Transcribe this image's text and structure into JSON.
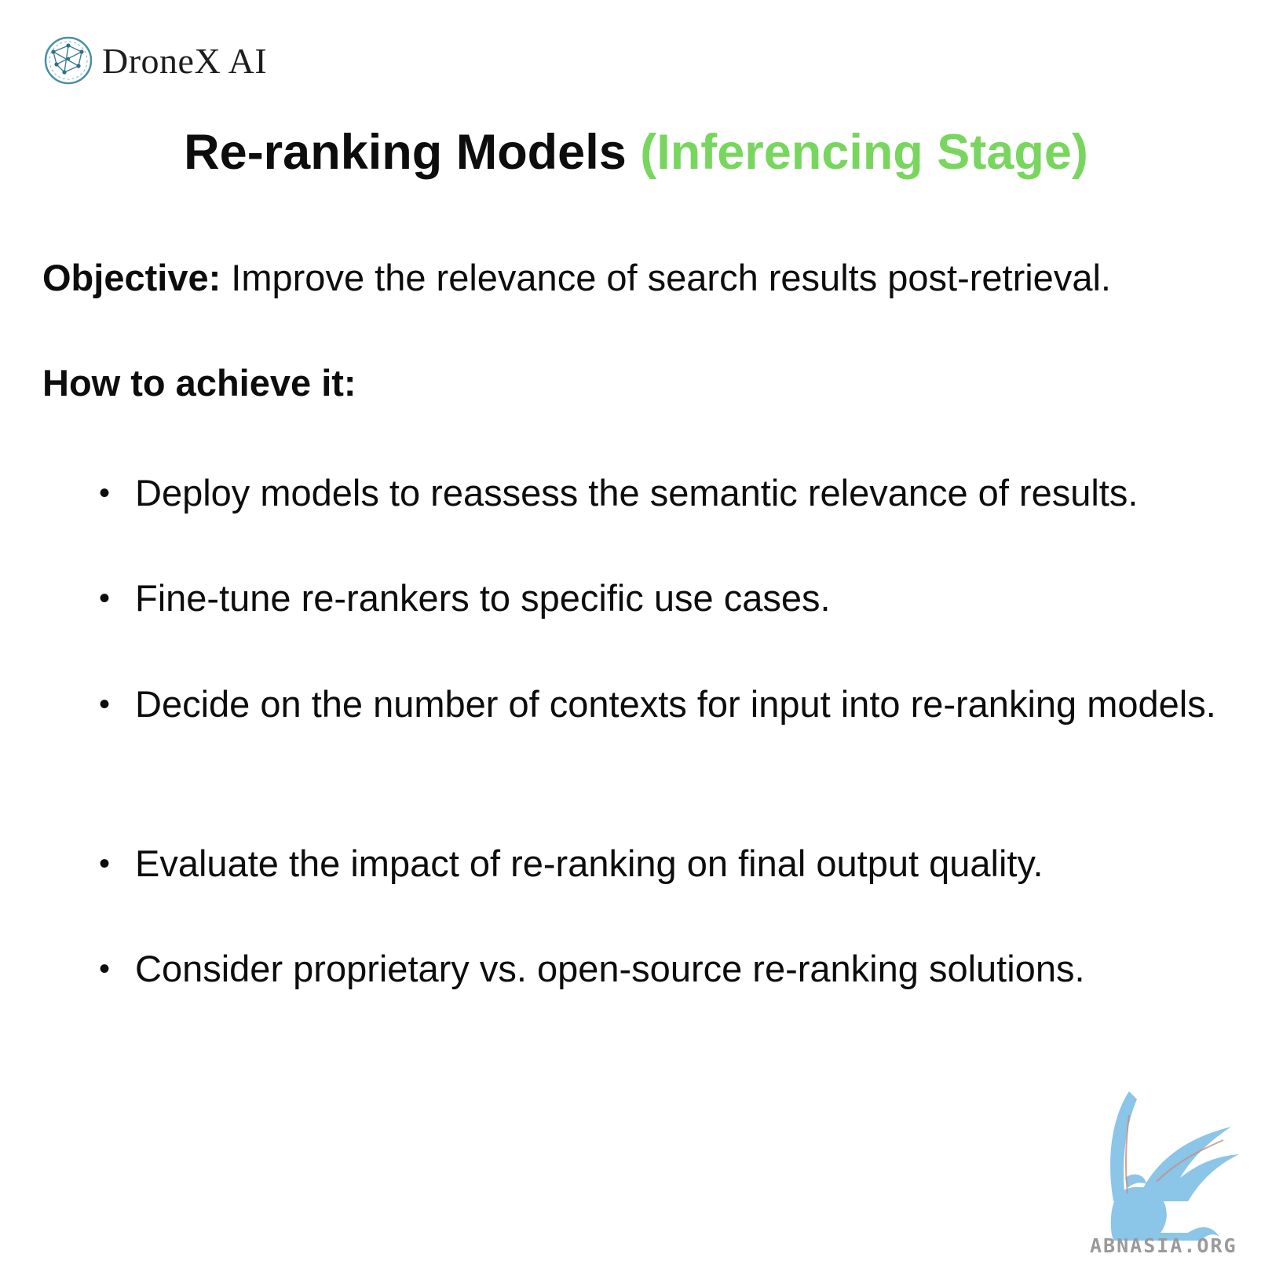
{
  "brand": {
    "name": "DroneX AI",
    "icon": "network-globe-icon"
  },
  "slide": {
    "title": "Re-ranking Models",
    "title_accent": "(Inferencing Stage)",
    "accent_color": "#78d65e",
    "objective_label": "Objective:",
    "objective_text": " Improve the relevance of search results post-retrieval.",
    "howto_label": "How to achieve it:",
    "bullet_symbol": "•",
    "bullets": [
      "Deploy models to reassess the semantic relevance of results.",
      "Fine-tune re-rankers to specific use cases.",
      "Decide on the number of contexts for input into re-ranking models.",
      "Evaluate the impact of re-ranking on final output quality.",
      "Consider proprietary vs. open-source re-ranking solutions."
    ]
  },
  "watermark": {
    "text": "ABNASIA.ORG",
    "icon": "griffin-logo-icon",
    "color": "#7fbfe6"
  }
}
